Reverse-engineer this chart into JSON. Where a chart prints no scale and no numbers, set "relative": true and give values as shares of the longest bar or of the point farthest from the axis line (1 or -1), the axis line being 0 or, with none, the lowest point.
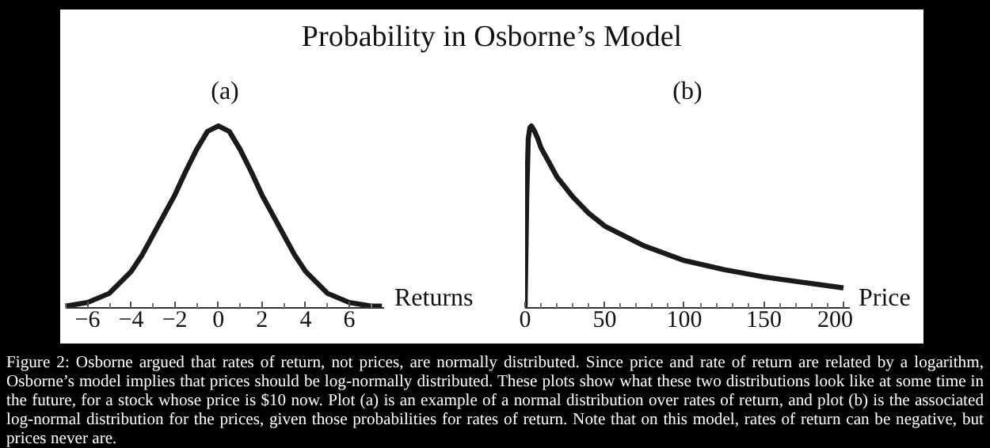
{
  "chart_data": [
    {
      "type": "other",
      "title": "Probability in Osborne’s Model",
      "annotations": [
        "Figure 2: Osborne argued that rates of return, not prices, are normally distributed. Since price and rate of return are related by a logarithm, Osborne’s model implies that prices should be log-normally distributed. These plots show what these two distributions look like at some time in the future, for a stock whose price is $10 now. Plot (a) is an example of a normal distribution over rates of return, and plot (b) is the associated log-normal distribution for the prices, given those probabilities for rates of return. Note that on this model, rates of return can be negative, but prices never are."
      ]
    },
    {
      "type": "line",
      "title": "(a)",
      "xlabel": "Returns",
      "relative": true,
      "tick_labels": "x",
      "color": "#1a1a1a",
      "x": [
        -7,
        -6,
        -5,
        -4,
        -3.5,
        -3,
        -2.5,
        -2,
        -1.5,
        -1,
        -0.5,
        0,
        0.5,
        1,
        1.5,
        2,
        2.5,
        3,
        3.5,
        4,
        5,
        6,
        7,
        7.5
      ],
      "values": [
        0.01,
        0.03,
        0.08,
        0.2,
        0.29,
        0.4,
        0.51,
        0.62,
        0.75,
        0.87,
        0.97,
        1,
        0.97,
        0.87,
        0.75,
        0.62,
        0.51,
        0.4,
        0.29,
        0.2,
        0.08,
        0.03,
        0.01,
        0.01
      ],
      "xlim": [
        -7,
        7.6
      ],
      "xticks": [
        {
          "value": -6,
          "label": "−6"
        },
        {
          "value": -4,
          "label": "−4"
        },
        {
          "value": -2,
          "label": "−2"
        },
        0,
        2,
        4,
        6,
        {
          "value": -7,
          "label": null
        },
        {
          "value": -5,
          "label": null
        },
        {
          "value": -3,
          "label": null
        },
        {
          "value": -1,
          "label": null
        },
        {
          "value": 1,
          "label": null
        },
        {
          "value": 3,
          "label": null
        },
        {
          "value": 5,
          "label": null
        },
        {
          "value": 7,
          "label": null
        }
      ]
    },
    {
      "type": "line",
      "title": "(b)",
      "xlabel": "Price",
      "relative": true,
      "tick_labels": "x",
      "color": "#1a1a1a",
      "x": [
        0,
        0.5,
        1,
        2,
        3,
        4,
        6,
        8,
        10,
        15,
        20,
        30,
        40,
        50,
        75,
        100,
        125,
        150,
        175,
        200
      ],
      "values": [
        0,
        0.3,
        0.6,
        0.93,
        0.99,
        1,
        0.97,
        0.93,
        0.88,
        0.8,
        0.72,
        0.61,
        0.52,
        0.45,
        0.34,
        0.26,
        0.21,
        0.17,
        0.14,
        0.11
      ],
      "xlim": [
        0,
        204
      ],
      "xticks": [
        0,
        50,
        100,
        150,
        200,
        {
          "value": 10,
          "label": null
        },
        {
          "value": 20,
          "label": null
        },
        {
          "value": 30,
          "label": null
        },
        {
          "value": 40,
          "label": null
        },
        {
          "value": 60,
          "label": null
        },
        {
          "value": 70,
          "label": null
        },
        {
          "value": 80,
          "label": null
        },
        {
          "value": 90,
          "label": null
        },
        {
          "value": 110,
          "label": null
        },
        {
          "value": 120,
          "label": null
        },
        {
          "value": 130,
          "label": null
        },
        {
          "value": 140,
          "label": null
        },
        {
          "value": 160,
          "label": null
        },
        {
          "value": 170,
          "label": null
        },
        {
          "value": 180,
          "label": null
        },
        {
          "value": 190,
          "label": null
        }
      ]
    }
  ]
}
